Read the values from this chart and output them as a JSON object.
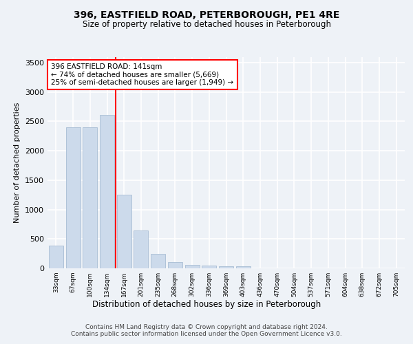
{
  "title": "396, EASTFIELD ROAD, PETERBOROUGH, PE1 4RE",
  "subtitle": "Size of property relative to detached houses in Peterborough",
  "xlabel": "Distribution of detached houses by size in Peterborough",
  "ylabel": "Number of detached properties",
  "categories": [
    "33sqm",
    "67sqm",
    "100sqm",
    "134sqm",
    "167sqm",
    "201sqm",
    "235sqm",
    "268sqm",
    "302sqm",
    "336sqm",
    "369sqm",
    "403sqm",
    "436sqm",
    "470sqm",
    "504sqm",
    "537sqm",
    "571sqm",
    "604sqm",
    "638sqm",
    "672sqm",
    "705sqm"
  ],
  "values": [
    390,
    2400,
    2400,
    2610,
    1250,
    640,
    250,
    105,
    60,
    50,
    30,
    30,
    0,
    0,
    0,
    0,
    0,
    0,
    0,
    0,
    0
  ],
  "bar_color": "#ccdaeb",
  "bar_edgecolor": "#a8bdd4",
  "vline_x": 3.5,
  "vline_color": "red",
  "annotation_text": "396 EASTFIELD ROAD: 141sqm\n← 74% of detached houses are smaller (5,669)\n25% of semi-detached houses are larger (1,949) →",
  "annotation_box_color": "white",
  "annotation_box_edgecolor": "red",
  "ylim": [
    0,
    3600
  ],
  "yticks": [
    0,
    500,
    1000,
    1500,
    2000,
    2500,
    3000,
    3500
  ],
  "background_color": "#eef2f7",
  "plot_background": "#eef2f7",
  "grid_color": "white",
  "footer_line1": "Contains HM Land Registry data © Crown copyright and database right 2024.",
  "footer_line2": "Contains public sector information licensed under the Open Government Licence v3.0."
}
